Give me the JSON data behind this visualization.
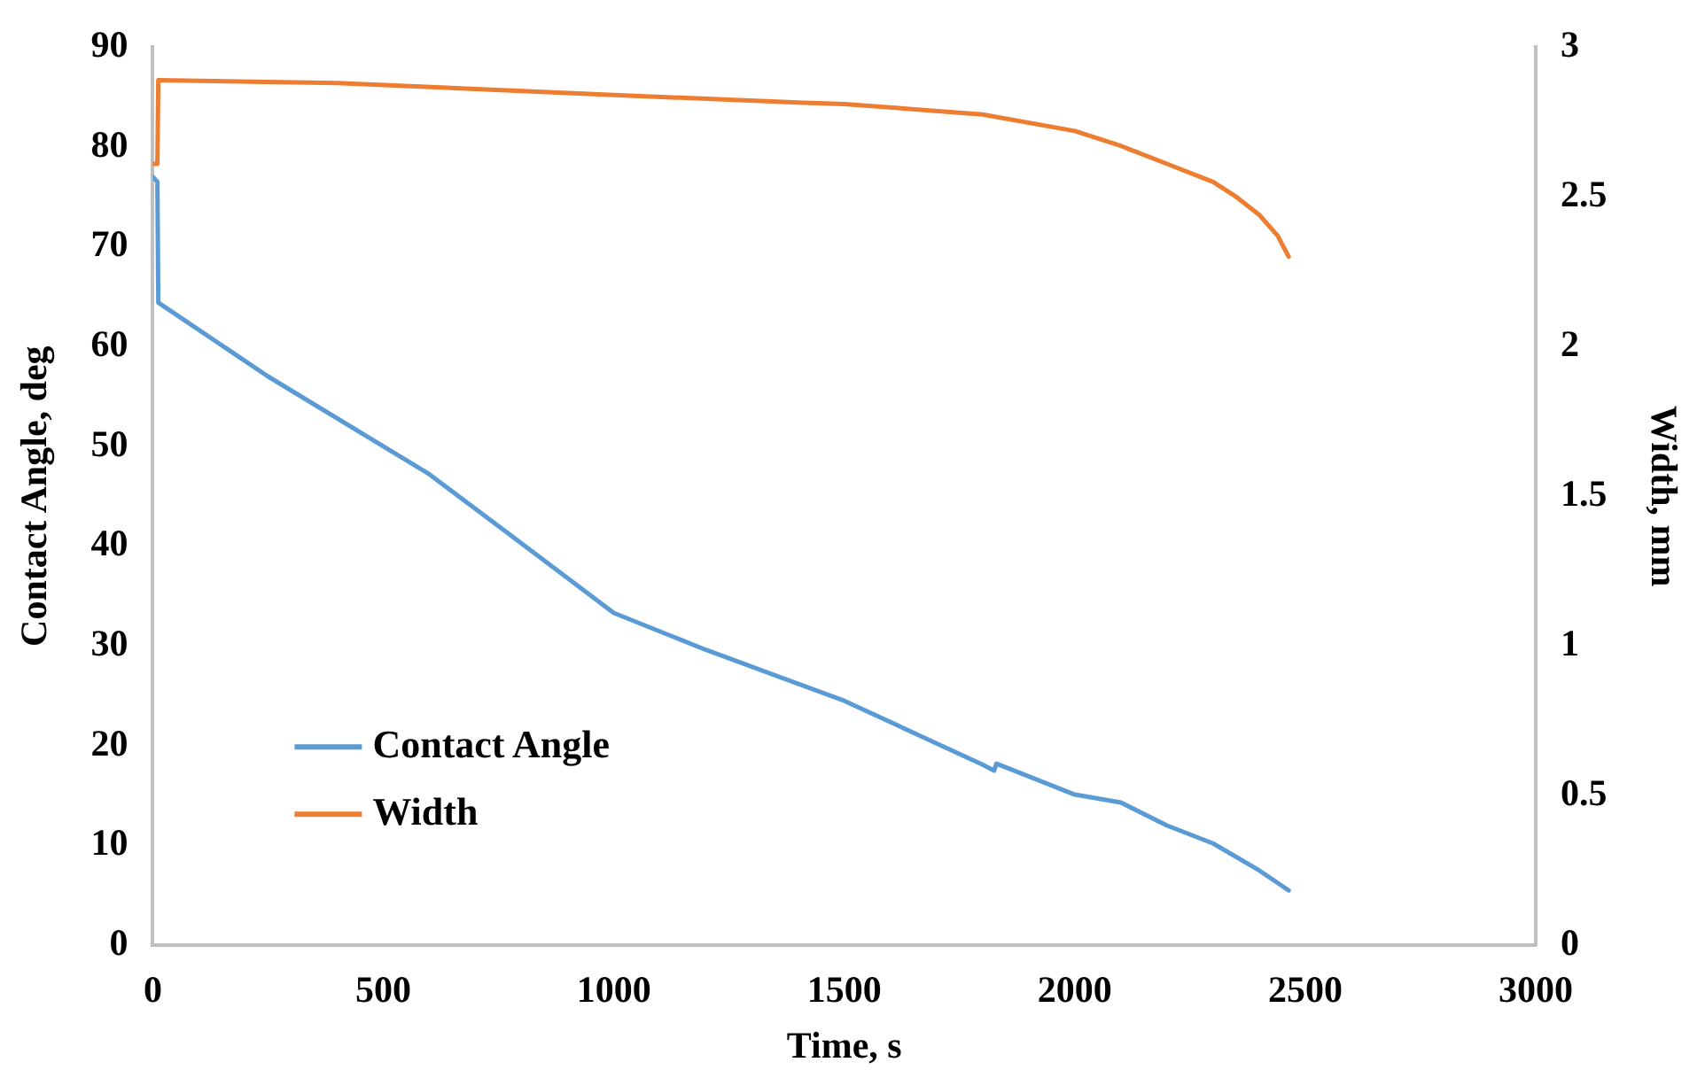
{
  "chart_data": {
    "type": "line",
    "xlabel": "Time, s",
    "ylabel": "Contact Angle, deg",
    "y2label": "Width, mm",
    "xlim": [
      0,
      3000
    ],
    "xticks": [
      0,
      500,
      1000,
      1500,
      2000,
      2500,
      3000
    ],
    "ylim": [
      0,
      90
    ],
    "yticks": [
      0,
      10,
      20,
      30,
      40,
      50,
      60,
      70,
      80,
      90
    ],
    "y2lim": [
      0,
      3
    ],
    "y2ticks": [
      0,
      0.5,
      1,
      1.5,
      2,
      2.5,
      3
    ],
    "grid": false,
    "legend": "bottom left",
    "marker": "none",
    "line_style": "solid",
    "series": [
      {
        "name": "Contact Angle",
        "color": "#5b9bd5",
        "x": [
          0,
          10,
          12,
          250,
          500,
          600,
          750,
          1000,
          1200,
          1500,
          1800,
          1825,
          1830,
          2000,
          2100,
          2200,
          2300,
          2400,
          2464
        ],
        "values": [
          77,
          76.5,
          64.4,
          57,
          50,
          47.2,
          42,
          33.3,
          29.6,
          24.5,
          18.1,
          17.5,
          18.2,
          15.1,
          14.3,
          12,
          10.2,
          7.5,
          5.5
        ]
      },
      {
        "name": "Width",
        "color": "#ed7d31",
        "axis": "y2",
        "x": [
          0,
          10,
          12,
          400,
          1000,
          1400,
          1500,
          1800,
          2000,
          2100,
          2200,
          2300,
          2350,
          2400,
          2440,
          2464
        ],
        "values": [
          2.61,
          2.61,
          2.89,
          2.88,
          2.84,
          2.815,
          2.81,
          2.775,
          2.72,
          2.67,
          2.61,
          2.55,
          2.5,
          2.44,
          2.37,
          2.3
        ]
      }
    ]
  }
}
